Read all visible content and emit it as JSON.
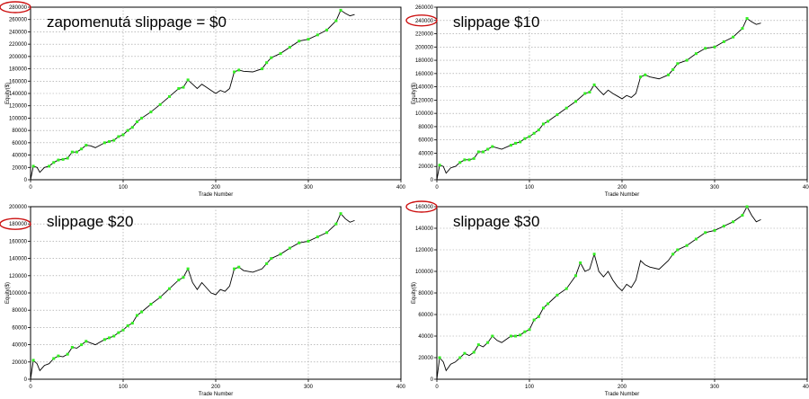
{
  "chart_data": [
    {
      "type": "line",
      "title": "zapomenutá slippage = $0",
      "xlabel": "Trade Number",
      "ylabel": "Equity($)",
      "xlim": [
        0,
        400
      ],
      "ylim": [
        0,
        280000
      ],
      "x_ticks": [
        0,
        100,
        200,
        300,
        400
      ],
      "y_ticks": [
        0,
        20000,
        40000,
        60000,
        80000,
        100000,
        120000,
        140000,
        160000,
        180000,
        200000,
        220000,
        240000,
        260000,
        280000
      ],
      "highlighted_tick": 280000,
      "grid": true,
      "colors": {
        "line": "#000000",
        "highlight": "#33ee22",
        "grid": "#999999",
        "circle": "#cc1111"
      },
      "series": [
        {
          "values": [
            [
              0,
              0
            ],
            [
              3,
              22000
            ],
            [
              7,
              20000
            ],
            [
              10,
              12000
            ],
            [
              15,
              20000
            ],
            [
              20,
              22000
            ],
            [
              25,
              28000
            ],
            [
              30,
              32000
            ],
            [
              35,
              33000
            ],
            [
              40,
              35000
            ],
            [
              45,
              45000
            ],
            [
              50,
              45000
            ],
            [
              55,
              50000
            ],
            [
              60,
              56000
            ],
            [
              65,
              55000
            ],
            [
              70,
              52000
            ],
            [
              80,
              60000
            ],
            [
              85,
              62000
            ],
            [
              90,
              64000
            ],
            [
              95,
              70000
            ],
            [
              100,
              73000
            ],
            [
              105,
              80000
            ],
            [
              110,
              85000
            ],
            [
              115,
              94000
            ],
            [
              120,
              100000
            ],
            [
              130,
              110000
            ],
            [
              140,
              122000
            ],
            [
              150,
              135000
            ],
            [
              160,
              148000
            ],
            [
              165,
              150000
            ],
            [
              170,
              162000
            ],
            [
              175,
              155000
            ],
            [
              180,
              148000
            ],
            [
              185,
              155000
            ],
            [
              190,
              150000
            ],
            [
              195,
              145000
            ],
            [
              200,
              140000
            ],
            [
              205,
              145000
            ],
            [
              210,
              142000
            ],
            [
              215,
              148000
            ],
            [
              220,
              175000
            ],
            [
              225,
              178000
            ],
            [
              230,
              176000
            ],
            [
              240,
              175000
            ],
            [
              250,
              180000
            ],
            [
              255,
              190000
            ],
            [
              260,
              198000
            ],
            [
              270,
              205000
            ],
            [
              280,
              215000
            ],
            [
              290,
              225000
            ],
            [
              300,
              228000
            ],
            [
              310,
              235000
            ],
            [
              320,
              243000
            ],
            [
              330,
              258000
            ],
            [
              335,
              275000
            ],
            [
              340,
              270000
            ],
            [
              345,
              266000
            ],
            [
              350,
              268000
            ]
          ]
        }
      ]
    },
    {
      "type": "line",
      "title": "slippage $10",
      "xlabel": "Trade Number",
      "ylabel": "Equity($)",
      "xlim": [
        0,
        400
      ],
      "ylim": [
        0,
        260000
      ],
      "x_ticks": [
        0,
        100,
        200,
        300,
        400
      ],
      "y_ticks": [
        0,
        20000,
        40000,
        60000,
        80000,
        100000,
        120000,
        140000,
        160000,
        180000,
        200000,
        220000,
        240000,
        260000
      ],
      "highlighted_tick": 240000,
      "grid": true,
      "colors": {
        "line": "#000000",
        "highlight": "#33ee22",
        "grid": "#999999",
        "circle": "#cc1111"
      },
      "series": [
        {
          "values": [
            [
              0,
              0
            ],
            [
              3,
              22000
            ],
            [
              7,
              20000
            ],
            [
              10,
              10000
            ],
            [
              15,
              18000
            ],
            [
              20,
              20000
            ],
            [
              25,
              26000
            ],
            [
              30,
              30000
            ],
            [
              35,
              30000
            ],
            [
              40,
              32000
            ],
            [
              45,
              42000
            ],
            [
              50,
              42000
            ],
            [
              55,
              46000
            ],
            [
              60,
              50000
            ],
            [
              65,
              48000
            ],
            [
              70,
              46000
            ],
            [
              80,
              52000
            ],
            [
              85,
              55000
            ],
            [
              90,
              57000
            ],
            [
              95,
              62000
            ],
            [
              100,
              65000
            ],
            [
              105,
              70000
            ],
            [
              110,
              75000
            ],
            [
              115,
              84000
            ],
            [
              120,
              88000
            ],
            [
              130,
              98000
            ],
            [
              140,
              108000
            ],
            [
              150,
              118000
            ],
            [
              160,
              130000
            ],
            [
              165,
              132000
            ],
            [
              170,
              143000
            ],
            [
              175,
              135000
            ],
            [
              180,
              128000
            ],
            [
              185,
              135000
            ],
            [
              190,
              130000
            ],
            [
              195,
              126000
            ],
            [
              200,
              122000
            ],
            [
              205,
              127000
            ],
            [
              210,
              124000
            ],
            [
              215,
              130000
            ],
            [
              220,
              155000
            ],
            [
              225,
              158000
            ],
            [
              230,
              155000
            ],
            [
              240,
              152000
            ],
            [
              250,
              158000
            ],
            [
              255,
              166000
            ],
            [
              260,
              175000
            ],
            [
              270,
              180000
            ],
            [
              280,
              190000
            ],
            [
              290,
              198000
            ],
            [
              300,
              200000
            ],
            [
              310,
              208000
            ],
            [
              320,
              215000
            ],
            [
              330,
              228000
            ],
            [
              335,
              243000
            ],
            [
              340,
              238000
            ],
            [
              345,
              234000
            ],
            [
              350,
              236000
            ]
          ]
        }
      ]
    },
    {
      "type": "line",
      "title": "slippage $20",
      "xlabel": "Trade Number",
      "ylabel": "Equity($)",
      "xlim": [
        0,
        400
      ],
      "ylim": [
        0,
        200000
      ],
      "x_ticks": [
        0,
        100,
        200,
        300,
        400
      ],
      "y_ticks": [
        0,
        20000,
        40000,
        60000,
        80000,
        100000,
        120000,
        140000,
        160000,
        180000,
        200000
      ],
      "highlighted_tick": 180000,
      "grid": true,
      "colors": {
        "line": "#000000",
        "highlight": "#33ee22",
        "grid": "#999999",
        "circle": "#cc1111"
      },
      "series": [
        {
          "values": [
            [
              0,
              0
            ],
            [
              3,
              22000
            ],
            [
              7,
              18000
            ],
            [
              10,
              10000
            ],
            [
              15,
              16000
            ],
            [
              20,
              18000
            ],
            [
              25,
              24000
            ],
            [
              30,
              27000
            ],
            [
              35,
              26000
            ],
            [
              40,
              29000
            ],
            [
              45,
              37000
            ],
            [
              50,
              36000
            ],
            [
              55,
              40000
            ],
            [
              60,
              44000
            ],
            [
              65,
              42000
            ],
            [
              70,
              40000
            ],
            [
              80,
              46000
            ],
            [
              85,
              48000
            ],
            [
              90,
              50000
            ],
            [
              95,
              54000
            ],
            [
              100,
              57000
            ],
            [
              105,
              62000
            ],
            [
              110,
              65000
            ],
            [
              115,
              74000
            ],
            [
              120,
              78000
            ],
            [
              130,
              87000
            ],
            [
              140,
              95000
            ],
            [
              150,
              105000
            ],
            [
              160,
              115000
            ],
            [
              165,
              118000
            ],
            [
              170,
              128000
            ],
            [
              175,
              112000
            ],
            [
              180,
              104000
            ],
            [
              185,
              112000
            ],
            [
              190,
              106000
            ],
            [
              195,
              100000
            ],
            [
              200,
              98000
            ],
            [
              205,
              104000
            ],
            [
              210,
              102000
            ],
            [
              215,
              108000
            ],
            [
              220,
              128000
            ],
            [
              225,
              130000
            ],
            [
              230,
              126000
            ],
            [
              240,
              124000
            ],
            [
              250,
              128000
            ],
            [
              255,
              134000
            ],
            [
              260,
              140000
            ],
            [
              270,
              145000
            ],
            [
              280,
              152000
            ],
            [
              290,
              158000
            ],
            [
              300,
              160000
            ],
            [
              310,
              165000
            ],
            [
              320,
              170000
            ],
            [
              330,
              180000
            ],
            [
              335,
              192000
            ],
            [
              340,
              186000
            ],
            [
              345,
              182000
            ],
            [
              350,
              184000
            ]
          ]
        }
      ]
    },
    {
      "type": "line",
      "title": "slippage $30",
      "xlabel": "Trade Number",
      "ylabel": "Equity($)",
      "xlim": [
        0,
        400
      ],
      "ylim": [
        0,
        160000
      ],
      "x_ticks": [
        0,
        100,
        200,
        300,
        400
      ],
      "y_ticks": [
        0,
        20000,
        40000,
        60000,
        80000,
        100000,
        120000,
        140000,
        160000
      ],
      "highlighted_tick": 160000,
      "grid": true,
      "colors": {
        "line": "#000000",
        "highlight": "#33ee22",
        "grid": "#999999",
        "circle": "#cc1111"
      },
      "series": [
        {
          "values": [
            [
              0,
              0
            ],
            [
              3,
              20000
            ],
            [
              7,
              16000
            ],
            [
              10,
              8000
            ],
            [
              15,
              14000
            ],
            [
              20,
              16000
            ],
            [
              25,
              20000
            ],
            [
              30,
              24000
            ],
            [
              35,
              22000
            ],
            [
              40,
              25000
            ],
            [
              45,
              32000
            ],
            [
              50,
              30000
            ],
            [
              55,
              34000
            ],
            [
              60,
              40000
            ],
            [
              65,
              36000
            ],
            [
              70,
              34000
            ],
            [
              80,
              40000
            ],
            [
              85,
              40000
            ],
            [
              90,
              41000
            ],
            [
              95,
              44000
            ],
            [
              100,
              46000
            ],
            [
              105,
              55000
            ],
            [
              110,
              58000
            ],
            [
              115,
              66000
            ],
            [
              120,
              70000
            ],
            [
              130,
              78000
            ],
            [
              140,
              84000
            ],
            [
              150,
              96000
            ],
            [
              155,
              108000
            ],
            [
              160,
              100000
            ],
            [
              165,
              102000
            ],
            [
              170,
              116000
            ],
            [
              175,
              100000
            ],
            [
              180,
              95000
            ],
            [
              185,
              100000
            ],
            [
              190,
              92000
            ],
            [
              195,
              86000
            ],
            [
              200,
              82000
            ],
            [
              205,
              88000
            ],
            [
              210,
              85000
            ],
            [
              215,
              92000
            ],
            [
              220,
              110000
            ],
            [
              225,
              106000
            ],
            [
              230,
              104000
            ],
            [
              240,
              102000
            ],
            [
              250,
              110000
            ],
            [
              255,
              116000
            ],
            [
              260,
              120000
            ],
            [
              270,
              124000
            ],
            [
              280,
              130000
            ],
            [
              290,
              136000
            ],
            [
              300,
              138000
            ],
            [
              310,
              142000
            ],
            [
              320,
              146000
            ],
            [
              330,
              152000
            ],
            [
              335,
              160000
            ],
            [
              340,
              152000
            ],
            [
              345,
              146000
            ],
            [
              350,
              148000
            ]
          ]
        }
      ]
    }
  ]
}
